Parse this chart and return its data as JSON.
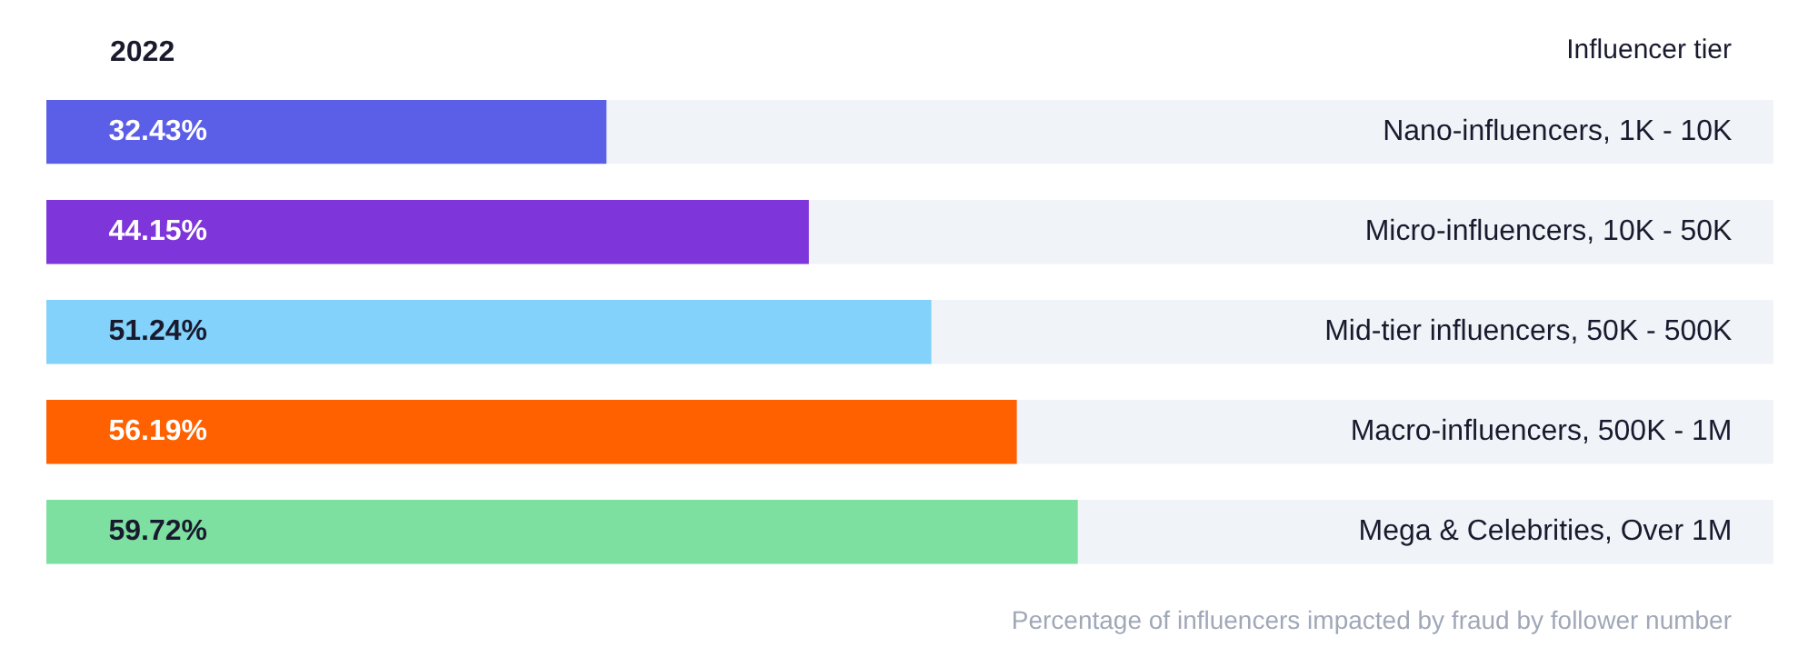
{
  "chart_data": {
    "type": "bar",
    "orientation": "horizontal",
    "title": "2022",
    "ylabel": "Influencer tier",
    "categories": [
      "Nano-influencers, 1K - 10K",
      "Micro-influencers, 10K - 50K",
      "Mid-tier influencers, 50K - 500K",
      "Macro-influencers, 500K - 1M",
      "Mega & Celebrities, Over 1M"
    ],
    "values": [
      32.43,
      44.15,
      51.24,
      56.19,
      59.72
    ],
    "colors": [
      "#5b5fe8",
      "#7e35d9",
      "#82d2fb",
      "#ff6000",
      "#7ee0a0"
    ],
    "value_labels": [
      "32.43%",
      "44.15%",
      "51.24%",
      "56.19%",
      "59.72%"
    ],
    "xlim": [
      0,
      100
    ],
    "tick_labels": false,
    "grid": false,
    "annotations": [
      "Percentage of influencers impacted by fraud by follower number"
    ]
  }
}
